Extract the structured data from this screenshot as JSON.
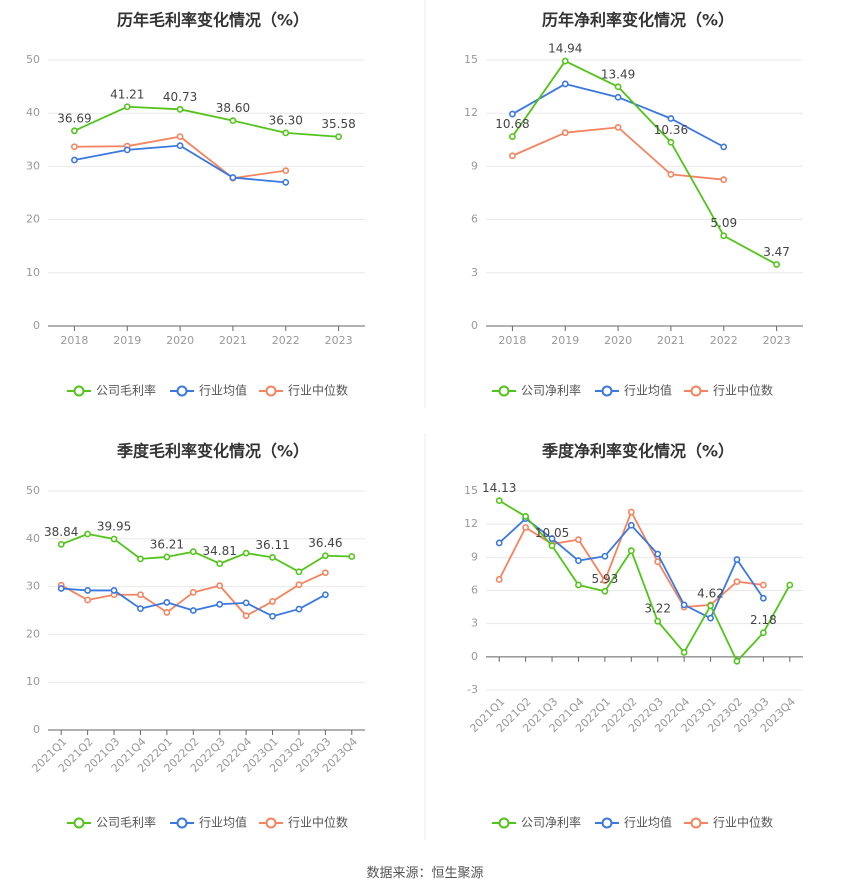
{
  "colors": {
    "company": "#52c41a",
    "industry_avg": "#3a78e0",
    "industry_median": "#f4845f",
    "title": "#333333",
    "tick": "#999999",
    "grid": "#e8e8e8",
    "axis": "#666666"
  },
  "footer": {
    "label": "数据来源：",
    "source": "恒生聚源"
  },
  "charts": [
    {
      "chart_data": {
        "type": "line",
        "title": "历年毛利率变化情况（%）",
        "categories": [
          "2018",
          "2019",
          "2020",
          "2021",
          "2022",
          "2023"
        ],
        "yticks": [
          0,
          10,
          20,
          30,
          40,
          50
        ],
        "ylim": [
          0,
          50
        ],
        "grid": true,
        "legend_position": "bottom",
        "rotate_x": false,
        "series": [
          {
            "name": "公司毛利率",
            "values": [
              36.69,
              41.21,
              40.73,
              38.6,
              36.3,
              35.58
            ],
            "labels": [
              "36.69",
              "41.21",
              "40.73",
              "38.60",
              "36.30",
              "35.58"
            ]
          },
          {
            "name": "行业均值",
            "values": [
              31.2,
              33.1,
              33.9,
              27.9,
              27.0,
              null
            ]
          },
          {
            "name": "行业中位数",
            "values": [
              33.7,
              33.8,
              35.6,
              27.8,
              29.2,
              null
            ]
          }
        ]
      }
    },
    {
      "chart_data": {
        "type": "line",
        "title": "历年净利率变化情况（%）",
        "categories": [
          "2018",
          "2019",
          "2020",
          "2021",
          "2022",
          "2023"
        ],
        "yticks": [
          0,
          3,
          6,
          9,
          12,
          15
        ],
        "ylim": [
          0,
          15
        ],
        "grid": true,
        "legend_position": "bottom",
        "rotate_x": false,
        "series": [
          {
            "name": "公司净利率",
            "values": [
              10.68,
              14.94,
              13.49,
              10.36,
              5.09,
              3.47
            ],
            "labels": [
              "10.68",
              "14.94",
              "13.49",
              "10.36",
              "5.09",
              "3.47"
            ]
          },
          {
            "name": "行业均值",
            "values": [
              11.95,
              13.65,
              12.9,
              11.7,
              10.1,
              null
            ]
          },
          {
            "name": "行业中位数",
            "values": [
              9.6,
              10.9,
              11.2,
              8.55,
              8.25,
              null
            ]
          }
        ]
      }
    },
    {
      "chart_data": {
        "type": "line",
        "title": "季度毛利率变化情况（%）",
        "categories": [
          "2021Q1",
          "2021Q2",
          "2021Q3",
          "2021Q4",
          "2022Q1",
          "2022Q2",
          "2022Q3",
          "2022Q4",
          "2023Q1",
          "2023Q2",
          "2023Q3",
          "2023Q4"
        ],
        "yticks": [
          0,
          10,
          20,
          30,
          40,
          50
        ],
        "ylim": [
          0,
          50
        ],
        "grid": true,
        "legend_position": "bottom",
        "rotate_x": true,
        "series": [
          {
            "name": "公司毛利率",
            "values": [
              38.84,
              41.0,
              39.95,
              35.8,
              36.21,
              37.3,
              34.81,
              37.0,
              36.11,
              33.1,
              36.46,
              36.3
            ],
            "labels": [
              "38.84",
              null,
              "39.95",
              null,
              "36.21",
              null,
              "34.81",
              null,
              "36.11",
              null,
              "36.46",
              null
            ]
          },
          {
            "name": "行业均值",
            "values": [
              29.6,
              29.2,
              29.2,
              25.4,
              26.7,
              25.0,
              26.3,
              26.6,
              23.8,
              25.3,
              28.3,
              null
            ]
          },
          {
            "name": "行业中位数",
            "values": [
              30.3,
              27.2,
              28.3,
              28.3,
              24.6,
              28.8,
              30.2,
              23.9,
              26.9,
              30.4,
              32.9,
              null
            ]
          }
        ]
      }
    },
    {
      "chart_data": {
        "type": "line",
        "title": "季度净利率变化情况（%）",
        "categories": [
          "2021Q1",
          "2021Q2",
          "2021Q3",
          "2021Q4",
          "2022Q1",
          "2022Q2",
          "2022Q3",
          "2022Q4",
          "2023Q1",
          "2023Q2",
          "2023Q3",
          "2023Q4"
        ],
        "yticks": [
          -3,
          0,
          3,
          6,
          9,
          12,
          15
        ],
        "ylim": [
          -3,
          15
        ],
        "grid": true,
        "legend_position": "bottom",
        "rotate_x": true,
        "series": [
          {
            "name": "公司净利率",
            "values": [
              14.13,
              12.7,
              10.05,
              6.5,
              5.93,
              9.6,
              3.22,
              0.4,
              4.62,
              -0.4,
              2.18,
              6.5
            ],
            "labels": [
              "14.13",
              null,
              "10.05",
              null,
              "5.93",
              null,
              "3.22",
              null,
              "4.62",
              null,
              "2.18",
              null
            ]
          },
          {
            "name": "行业均值",
            "values": [
              10.3,
              12.5,
              10.7,
              8.7,
              9.1,
              11.9,
              9.3,
              4.7,
              3.5,
              8.8,
              5.3,
              null
            ]
          },
          {
            "name": "行业中位数",
            "values": [
              7.0,
              11.7,
              10.2,
              10.6,
              6.9,
              13.1,
              8.6,
              4.5,
              4.7,
              6.8,
              6.5,
              null
            ]
          }
        ]
      }
    }
  ]
}
